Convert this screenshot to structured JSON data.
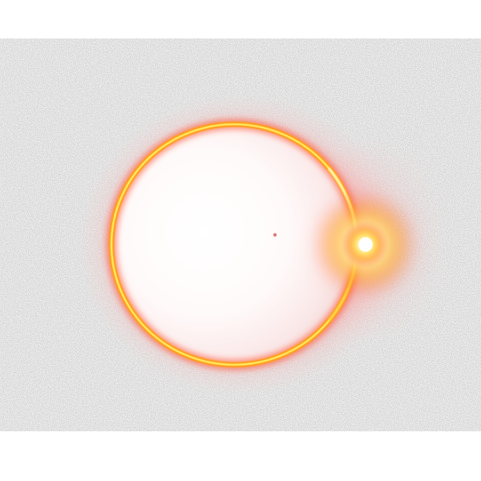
{
  "scene": {
    "subject": "glowing-ring-with-flare",
    "colors": {
      "page_background": "#ffffff",
      "noise_background": "#f2f2f2",
      "noise_speckle": "#c8c8c8",
      "halo_outer": "#ff9a9a",
      "ring_core": "#ffe45a",
      "ring_mid": "#ff9d1e",
      "ring_outer": "#e8552c",
      "disc_fill": "#fdf5f5",
      "flare_core": "#ffffff",
      "flare_mid": "#ffe066",
      "flare_outer": "#ff8a1c",
      "center_dot": "#e07a7a"
    }
  }
}
